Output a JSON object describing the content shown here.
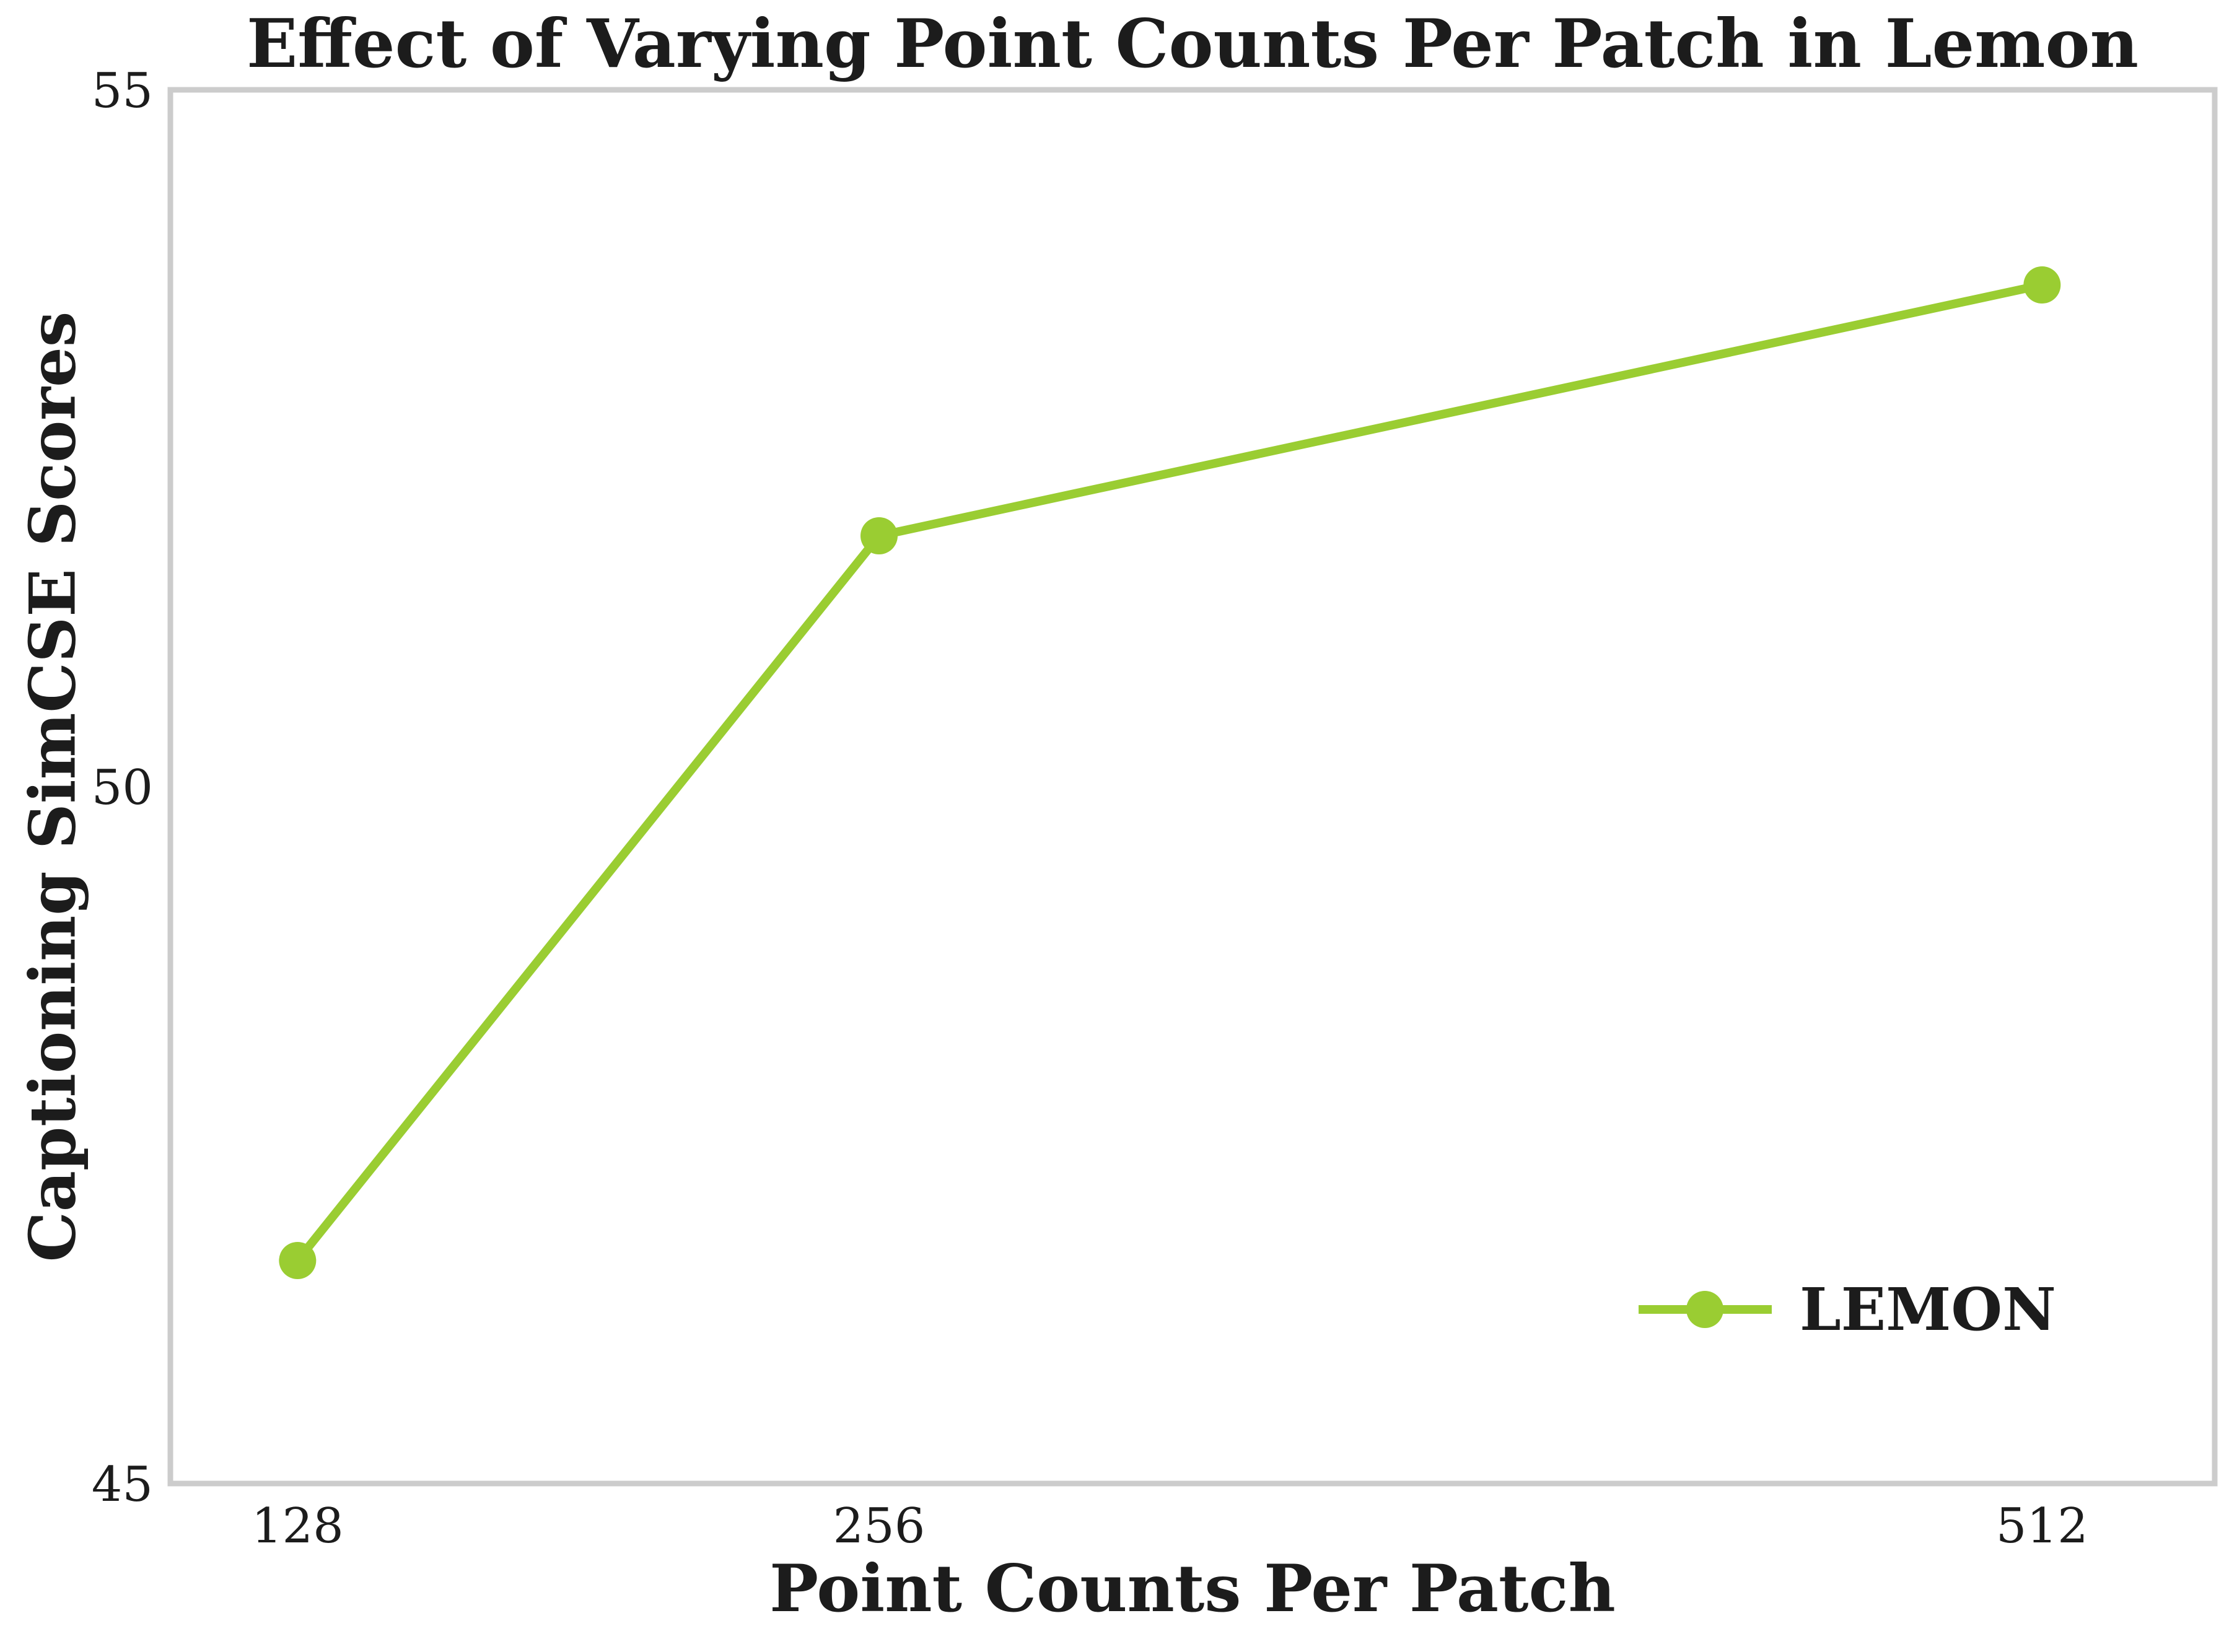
{
  "chart_data": {
    "type": "line",
    "title": "Effect of Varying Point Counts Per Patch in Lemon",
    "xlabel": "Point Counts Per Patch",
    "ylabel": "Captioning SimCSE Scores",
    "x": [
      128,
      256,
      512
    ],
    "x_tick_labels": [
      "128",
      "256",
      "512"
    ],
    "y_ticks": [
      45,
      50,
      55
    ],
    "y_tick_labels": [
      "45",
      "50",
      "55"
    ],
    "xlim": [
      100,
      550
    ],
    "ylim": [
      45,
      55
    ],
    "grid": false,
    "legend_position": "lower right",
    "series": [
      {
        "name": "LEMON",
        "color": "#9ACD32",
        "values": [
          46.6,
          51.8,
          53.6
        ]
      }
    ]
  },
  "colors": {
    "line": "#9ACD32",
    "spine": "#cccccc",
    "text": "#1c1c1c",
    "background": "#ffffff"
  }
}
